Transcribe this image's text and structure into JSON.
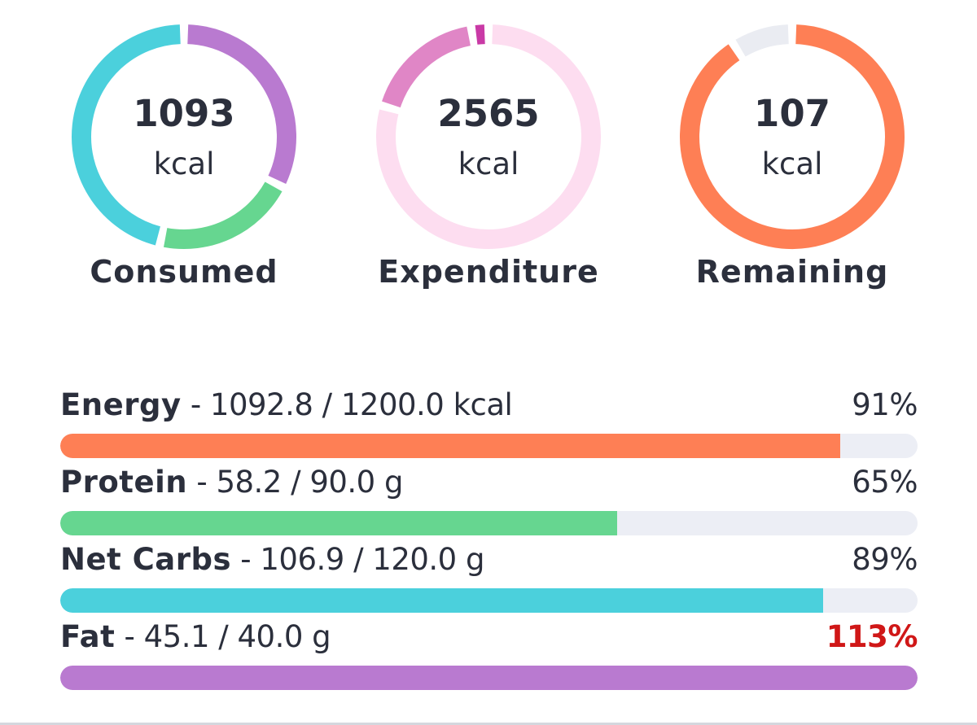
{
  "summary": {
    "consumed": {
      "value": "1093",
      "unit": "kcal",
      "caption": "Consumed",
      "segments": [
        {
          "name": "fat",
          "fraction": 0.325,
          "color": "#b97ad0"
        },
        {
          "name": "protein",
          "fraction": 0.21,
          "color": "#66d690"
        },
        {
          "name": "net carbs",
          "fraction": 0.465,
          "color": "#4bd0dc"
        }
      ]
    },
    "expenditure": {
      "value": "2565",
      "unit": "kcal",
      "caption": "Expenditure",
      "track_color": "#fdddf0",
      "segments": [
        {
          "name": "segment-1",
          "fraction": 0.795,
          "color": "#fdddf0"
        },
        {
          "name": "segment-2",
          "fraction": 0.18,
          "color": "#e086c6"
        },
        {
          "name": "segment-3",
          "fraction": 0.025,
          "color": "#c93aa6"
        }
      ]
    },
    "remaining": {
      "value": "107",
      "unit": "kcal",
      "caption": "Remaining",
      "segments": [
        {
          "name": "used",
          "fraction": 0.91,
          "color": "#fe7f55"
        },
        {
          "name": "remaining",
          "fraction": 0.09,
          "color": "#eaecf2"
        }
      ]
    }
  },
  "targets": [
    {
      "name": "Energy",
      "detail": " - 1092.8 / 1200.0 kcal",
      "percent": "91%",
      "progress": 0.91,
      "color": "#fe7f55",
      "over": false
    },
    {
      "name": "Protein",
      "detail": " - 58.2 / 90.0 g",
      "percent": "65%",
      "progress": 0.65,
      "color": "#66d690",
      "over": false
    },
    {
      "name": "Net Carbs",
      "detail": " - 106.9 / 120.0 g",
      "percent": "89%",
      "progress": 0.89,
      "color": "#4bd0dc",
      "over": false
    },
    {
      "name": "Fat",
      "detail": " - 45.1 / 40.0 g",
      "percent": "113%",
      "progress": 1.0,
      "color": "#b97ad0",
      "over": true
    }
  ],
  "colors": {
    "text": "#2b2f3c",
    "over_target": "#d01717",
    "track": "#eceef5"
  }
}
